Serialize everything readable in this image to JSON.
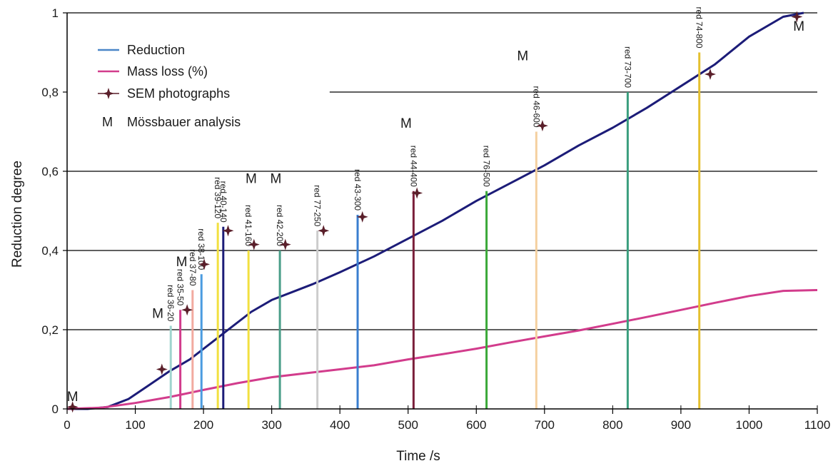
{
  "chart_data": {
    "type": "line",
    "xlabel": "Time /s",
    "ylabel": "Reduction degree",
    "xlim": [
      0,
      1100
    ],
    "ylim": [
      0,
      1
    ],
    "x_ticks": [
      "0",
      "100",
      "200",
      "300",
      "400",
      "500",
      "600",
      "700",
      "800",
      "900",
      "1000",
      "1100"
    ],
    "y_ticks": [
      "0",
      "0,2",
      "0,4",
      "0,6",
      "0,8",
      "1"
    ],
    "grid": "horizontal",
    "legend": {
      "placement": "top-left",
      "entries": [
        {
          "label": "Reduction",
          "color": "#4a86c8",
          "kind": "line"
        },
        {
          "label": "Mass loss (%)",
          "color": "#d23c8c",
          "kind": "line"
        },
        {
          "label": "SEM photographs",
          "color": "#5a1f2a",
          "kind": "marker"
        },
        {
          "label": "Mössbauer analysis",
          "symbol": "M",
          "kind": "text"
        }
      ]
    },
    "series": [
      {
        "label": "Reduction",
        "color": "#1c1c78",
        "x": [
          0,
          30,
          60,
          90,
          120,
          150,
          180,
          210,
          240,
          270,
          300,
          330,
          360,
          400,
          450,
          500,
          550,
          600,
          650,
          700,
          750,
          800,
          850,
          900,
          950,
          1000,
          1050,
          1080
        ],
        "y": [
          0,
          0,
          0.005,
          0.025,
          0.06,
          0.095,
          0.125,
          0.165,
          0.205,
          0.245,
          0.275,
          0.295,
          0.315,
          0.345,
          0.385,
          0.43,
          0.475,
          0.525,
          0.57,
          0.615,
          0.665,
          0.71,
          0.76,
          0.815,
          0.87,
          0.94,
          0.99,
          1.0
        ]
      },
      {
        "label": "Mass loss (%)",
        "color": "#d23c8c",
        "x": [
          0,
          50,
          100,
          150,
          200,
          250,
          300,
          350,
          400,
          450,
          500,
          550,
          600,
          650,
          700,
          750,
          800,
          850,
          900,
          950,
          1000,
          1050,
          1100
        ],
        "y": [
          0,
          0.003,
          0.015,
          0.03,
          0.048,
          0.065,
          0.08,
          0.09,
          0.1,
          0.11,
          0.125,
          0.138,
          0.152,
          0.168,
          0.183,
          0.198,
          0.215,
          0.232,
          0.25,
          0.268,
          0.285,
          0.298,
          0.3
        ]
      }
    ],
    "samples": [
      {
        "label": "red 36-20",
        "x": 152,
        "y": 0.21,
        "color": "#9fd4ce"
      },
      {
        "label": "red 35-50",
        "x": 166,
        "y": 0.25,
        "color": "#d23c8c"
      },
      {
        "label": "red 37-80",
        "x": 184,
        "y": 0.3,
        "color": "#f2aaa0"
      },
      {
        "label": "red 38-100",
        "x": 197,
        "y": 0.34,
        "color": "#4a9be0"
      },
      {
        "label": "red 39-120",
        "x": 221,
        "y": 0.47,
        "color": "#f2e040"
      },
      {
        "label": "red 40-140",
        "x": 229,
        "y": 0.46,
        "color": "#1c1c78"
      },
      {
        "label": "red 41-160",
        "x": 266,
        "y": 0.4,
        "color": "#f2e040"
      },
      {
        "label": "red 42-200",
        "x": 312,
        "y": 0.4,
        "color": "#4a9e88"
      },
      {
        "label": "red 77-250",
        "x": 367,
        "y": 0.45,
        "color": "#cccccc"
      },
      {
        "label": "red 43-300",
        "x": 426,
        "y": 0.49,
        "color": "#3a7ed0"
      },
      {
        "label": "red 44-400",
        "x": 508,
        "y": 0.55,
        "color": "#7a1f3a"
      },
      {
        "label": "red 76-500",
        "x": 615,
        "y": 0.55,
        "color": "#3aa838"
      },
      {
        "label": "red 46-600",
        "x": 688,
        "y": 0.7,
        "color": "#f4d0a0"
      },
      {
        "label": "red 73-700",
        "x": 822,
        "y": 0.8,
        "color": "#3a9e7e"
      },
      {
        "label": "red 74-800",
        "x": 927,
        "y": 0.9,
        "color": "#e4c030"
      }
    ],
    "sem_points": [
      {
        "x": 8,
        "y": 0.005
      },
      {
        "x": 139,
        "y": 0.1
      },
      {
        "x": 176,
        "y": 0.25
      },
      {
        "x": 201,
        "y": 0.365
      },
      {
        "x": 236,
        "y": 0.45
      },
      {
        "x": 274,
        "y": 0.415
      },
      {
        "x": 320,
        "y": 0.415
      },
      {
        "x": 376,
        "y": 0.45
      },
      {
        "x": 433,
        "y": 0.485
      },
      {
        "x": 513,
        "y": 0.545
      },
      {
        "x": 697,
        "y": 0.715
      },
      {
        "x": 943,
        "y": 0.845
      },
      {
        "x": 1070,
        "y": 0.99
      }
    ],
    "mossbauer_marks": [
      {
        "x": 8,
        "y": 0.02
      },
      {
        "x": 133,
        "y": 0.23
      },
      {
        "x": 168,
        "y": 0.36
      },
      {
        "x": 270,
        "y": 0.57
      },
      {
        "x": 306,
        "y": 0.57
      },
      {
        "x": 497,
        "y": 0.71
      },
      {
        "x": 668,
        "y": 0.88
      },
      {
        "x": 1073,
        "y": 0.955
      }
    ]
  }
}
